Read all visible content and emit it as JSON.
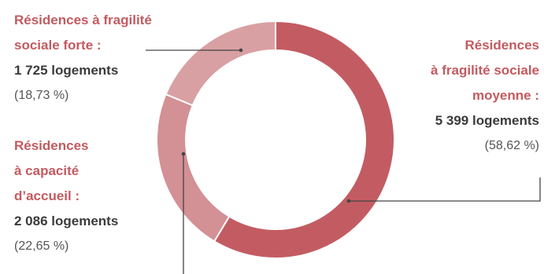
{
  "chart_data": {
    "type": "pie",
    "donut": true,
    "unit": "logements",
    "categories": [
      [
        "Résidences à fragilité",
        "sociale forte :"
      ],
      [
        "Résidences",
        "à fragilité sociale",
        "moyenne :"
      ],
      [
        "Résidences",
        "à capacité",
        "d’accueil :"
      ]
    ],
    "value_labels": [
      "1 725 logements",
      "5 399 logements",
      "2 086 logements"
    ],
    "percent_labels": [
      "(18,73 %)",
      "(58,62 %)",
      "(22,65 %)"
    ],
    "values": [
      1725,
      5399,
      2086
    ],
    "percents": [
      18.73,
      58.62,
      22.65
    ],
    "colors": [
      "#d9a0a3",
      "#c35c62",
      "#d39095"
    ],
    "legend": "none"
  }
}
